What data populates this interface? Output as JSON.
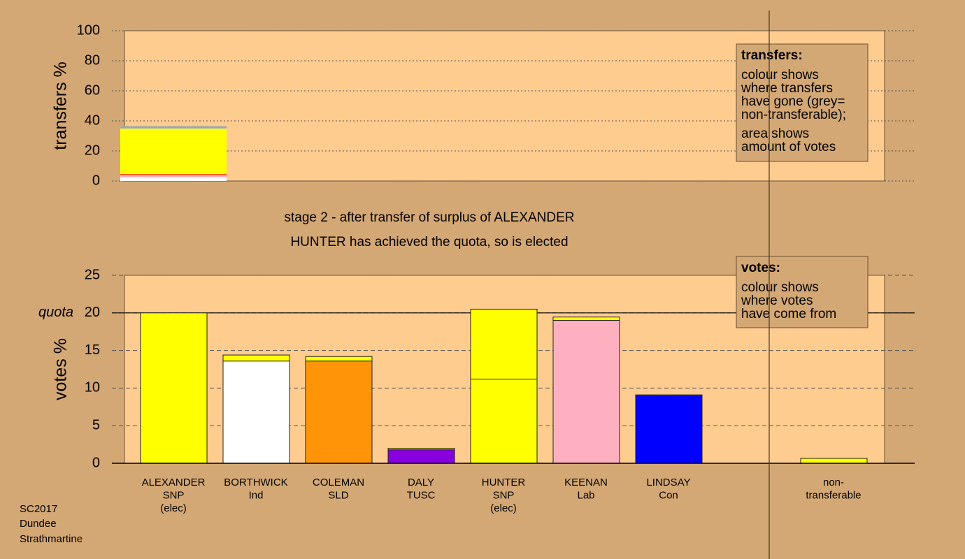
{
  "chart_data": [
    {
      "type": "stacked-bar",
      "ylabel": "transfers %",
      "ylim": [
        0,
        100
      ],
      "yticks": [
        0,
        20,
        40,
        60,
        80,
        100
      ],
      "values": [
        2.5,
        1.5,
        0.6,
        30.4,
        0.6,
        1.0
      ],
      "colors": [
        "#ffffff",
        "#ffb0c0",
        "#ff3300",
        "#ffff00",
        "#8899ff",
        "#aaaaaa"
      ],
      "legend_title": "transfers:",
      "legend_paragraphs": [
        [
          "colour shows",
          "where transfers",
          "have gone (grey=",
          "non-transferable);"
        ],
        [
          "area shows",
          "amount of votes"
        ]
      ]
    },
    {
      "type": "stacked-bar",
      "ylabel": "votes %",
      "ylim": [
        0,
        25
      ],
      "yticks": [
        0,
        5,
        10,
        15,
        20,
        25
      ],
      "quota": 20,
      "quota_label": "quota",
      "categories": [
        [
          "ALEXANDER",
          "SNP",
          "(elec)"
        ],
        [
          "BORTHWICK",
          "Ind"
        ],
        [
          "COLEMAN",
          "SLD"
        ],
        [
          "DALY",
          "TUSC"
        ],
        [
          "HUNTER",
          "SNP",
          "(elec)"
        ],
        [
          "KEENAN",
          "Lab"
        ],
        [
          "LINDSAY",
          "Con"
        ],
        [
          "non-",
          "transferable"
        ]
      ],
      "series": [
        {
          "colors": [
            "#ffff00",
            "#ffffff",
            "#ff9408",
            "#8800dd",
            "#ffff00",
            "#ffb0c0",
            "#0000ff",
            null
          ],
          "values": [
            20.0,
            13.6,
            13.6,
            1.8,
            11.2,
            19.0,
            9.0,
            null
          ]
        },
        {
          "color": "#ffff00",
          "values": [
            null,
            0.8,
            0.6,
            0.2,
            9.3,
            0.45,
            0.1,
            0.65
          ]
        }
      ],
      "legend_title": "votes:",
      "legend_paragraphs": [
        [
          "colour shows",
          "where votes",
          "have come from"
        ]
      ]
    }
  ],
  "caption": [
    "stage 2 - after transfer of surplus of ALEXANDER",
    "HUNTER has achieved the quota, so is elected"
  ],
  "footer": [
    "SC2017",
    "Dundee",
    "Strathmartine"
  ]
}
